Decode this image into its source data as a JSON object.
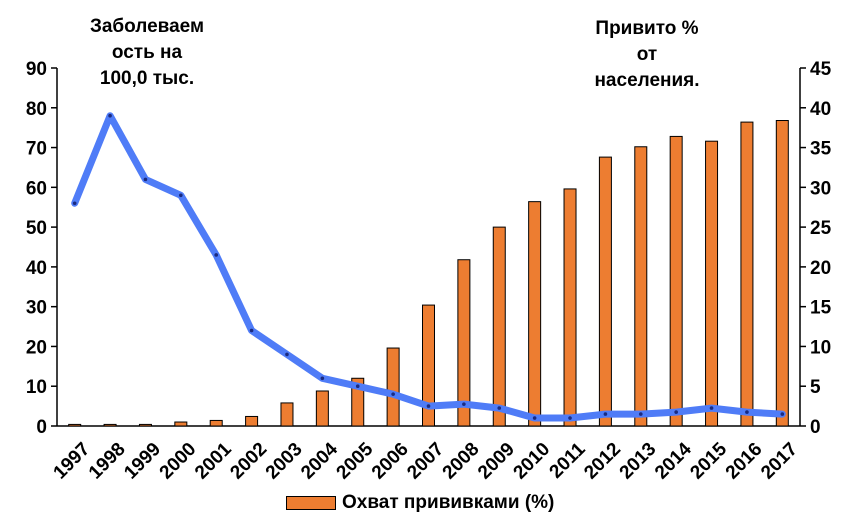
{
  "chart_data": {
    "type": "bar+line",
    "categories": [
      "1997",
      "1998",
      "1999",
      "2000",
      "2001",
      "2002",
      "2003",
      "2004",
      "2005",
      "2006",
      "2007",
      "2008",
      "2009",
      "2010",
      "2011",
      "2012",
      "2013",
      "2014",
      "2015",
      "2016",
      "2017"
    ],
    "series": [
      {
        "name": "Охват прививками (%)",
        "type": "bar",
        "axis": "right",
        "color": "#ED7D31",
        "values": [
          0.2,
          0.2,
          0.2,
          0.5,
          0.7,
          1.2,
          2.9,
          4.4,
          6.0,
          9.8,
          15.2,
          20.9,
          25.0,
          28.2,
          29.8,
          33.8,
          35.1,
          36.4,
          35.8,
          38.2,
          38.4
        ]
      },
      {
        "type": "line",
        "axis": "left",
        "color": "#4F7CF7",
        "values": [
          56,
          78,
          62,
          58,
          43,
          24,
          18,
          12,
          10,
          8,
          5,
          5.5,
          4.5,
          2,
          2,
          3,
          3,
          3.5,
          4.5,
          3.5,
          3
        ]
      }
    ],
    "y_left": {
      "title": "Заболеваем ость на 100,0 тыс.",
      "ylim": [
        0,
        90
      ],
      "ticks": [
        "0",
        "10",
        "20",
        "30",
        "40",
        "50",
        "60",
        "70",
        "80",
        "90"
      ]
    },
    "y_right": {
      "title": "Привито % от населения.",
      "ylim": [
        0,
        45
      ],
      "ticks": [
        "0",
        "5",
        "10",
        "15",
        "20",
        "25",
        "30",
        "35",
        "40",
        "45"
      ]
    },
    "legend": {
      "position": "bottom",
      "label": "Охват прививками (%)"
    },
    "grid": false
  },
  "titles": {
    "left": "Заболеваем\nость на\n100,0 тыс.",
    "right": "Привито %\nот\nнаселения."
  }
}
